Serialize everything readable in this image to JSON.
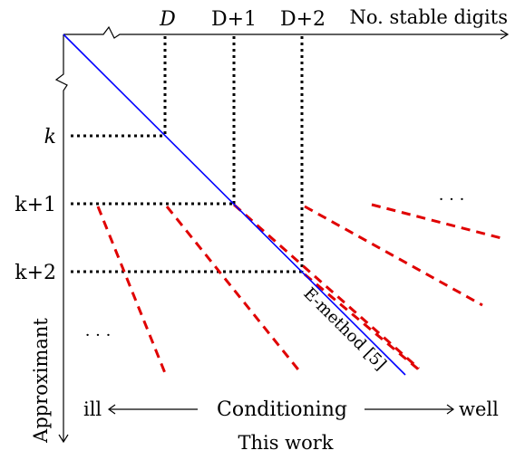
{
  "axes": {
    "x_axis_label": "No. stable digits",
    "y_axis_label": "Approximant"
  },
  "x_ticks": [
    "D",
    "D+1",
    "D+2"
  ],
  "y_ticks": [
    "k",
    "k+1",
    "k+2"
  ],
  "ellipses": {
    "top_right": "· · ·",
    "bottom_left": "· · ·"
  },
  "method_line": {
    "label": "E-method [5]",
    "color": "#0000ff"
  },
  "red_lines_color": "#e00000",
  "conditioning": {
    "left": "ill",
    "center": "Conditioning",
    "right": "well"
  },
  "footer": "This work"
}
